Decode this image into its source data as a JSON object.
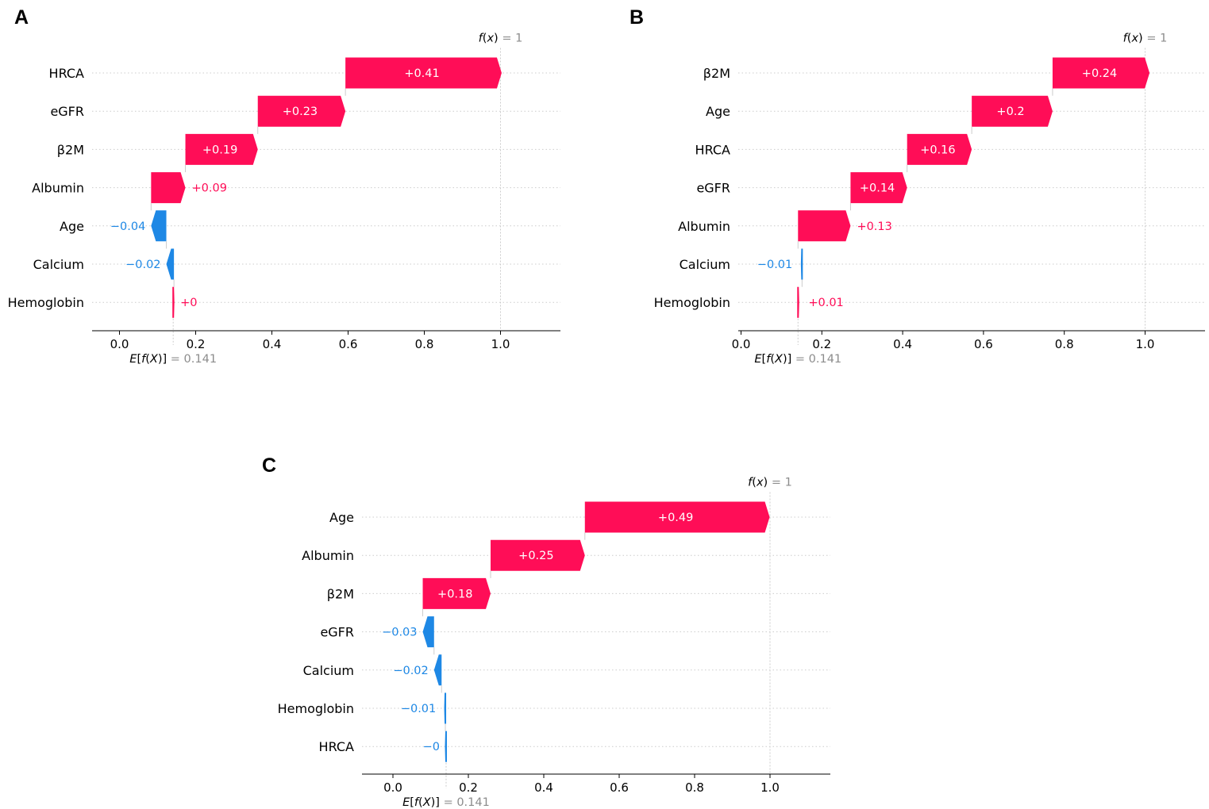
{
  "chart_data": [
    {
      "type": "bar",
      "subtype": "shap-waterfall",
      "panel": "A",
      "base_value_label": "0.141",
      "base_value": 0.141,
      "output_label": "1",
      "output_value": 1.0,
      "xlim": [
        -0.07,
        1.16
      ],
      "x_ticks": [
        "0.0",
        "0.2",
        "0.4",
        "0.6",
        "0.8",
        "1.0"
      ],
      "features": [
        {
          "name": "HRCA",
          "value": 0.41,
          "label": "+0.41"
        },
        {
          "name": "eGFR",
          "value": 0.23,
          "label": "+0.23"
        },
        {
          "name": "β2M",
          "value": 0.19,
          "label": "+0.19"
        },
        {
          "name": "Albumin",
          "value": 0.09,
          "label": "+0.09"
        },
        {
          "name": "Age",
          "value": -0.04,
          "label": "−0.04"
        },
        {
          "name": "Calcium",
          "value": -0.02,
          "label": "−0.02"
        },
        {
          "name": "Hemoglobin",
          "value": 0.002,
          "label": "+0"
        }
      ]
    },
    {
      "type": "bar",
      "subtype": "shap-waterfall",
      "panel": "B",
      "base_value_label": "0.141",
      "base_value": 0.141,
      "output_label": "1",
      "output_value": 1.0,
      "xlim": [
        -0.01,
        1.15
      ],
      "x_ticks": [
        "0.0",
        "0.2",
        "0.4",
        "0.6",
        "0.8",
        "1.0"
      ],
      "features": [
        {
          "name": "β2M",
          "value": 0.24,
          "label": "+0.24"
        },
        {
          "name": "Age",
          "value": 0.2,
          "label": "+0.2"
        },
        {
          "name": "HRCA",
          "value": 0.16,
          "label": "+0.16"
        },
        {
          "name": "eGFR",
          "value": 0.14,
          "label": "+0.14"
        },
        {
          "name": "Albumin",
          "value": 0.13,
          "label": "+0.13"
        },
        {
          "name": "Calcium",
          "value": -0.01,
          "label": "−0.01"
        },
        {
          "name": "Hemoglobin",
          "value": 0.01,
          "label": "+0.01"
        }
      ]
    },
    {
      "type": "bar",
      "subtype": "shap-waterfall",
      "panel": "C",
      "base_value_label": "0.141",
      "base_value": 0.141,
      "output_label": "1",
      "output_value": 1.0,
      "xlim": [
        -0.08,
        1.15
      ],
      "x_ticks": [
        "0.0",
        "0.2",
        "0.4",
        "0.6",
        "0.8",
        "1.0"
      ],
      "features": [
        {
          "name": "Age",
          "value": 0.49,
          "label": "+0.49"
        },
        {
          "name": "Albumin",
          "value": 0.25,
          "label": "+0.25"
        },
        {
          "name": "β2M",
          "value": 0.18,
          "label": "+0.18"
        },
        {
          "name": "eGFR",
          "value": -0.03,
          "label": "−0.03"
        },
        {
          "name": "Calcium",
          "value": -0.02,
          "label": "−0.02"
        },
        {
          "name": "Hemoglobin",
          "value": -0.01,
          "label": "−0.01"
        },
        {
          "name": "HRCA",
          "value": -0.002,
          "label": "−0"
        }
      ]
    }
  ],
  "colors": {
    "positive": "#ff0d57",
    "negative": "#1e88e5",
    "grid": "#cccccc",
    "annotation_grey": "#8c8c8c"
  }
}
